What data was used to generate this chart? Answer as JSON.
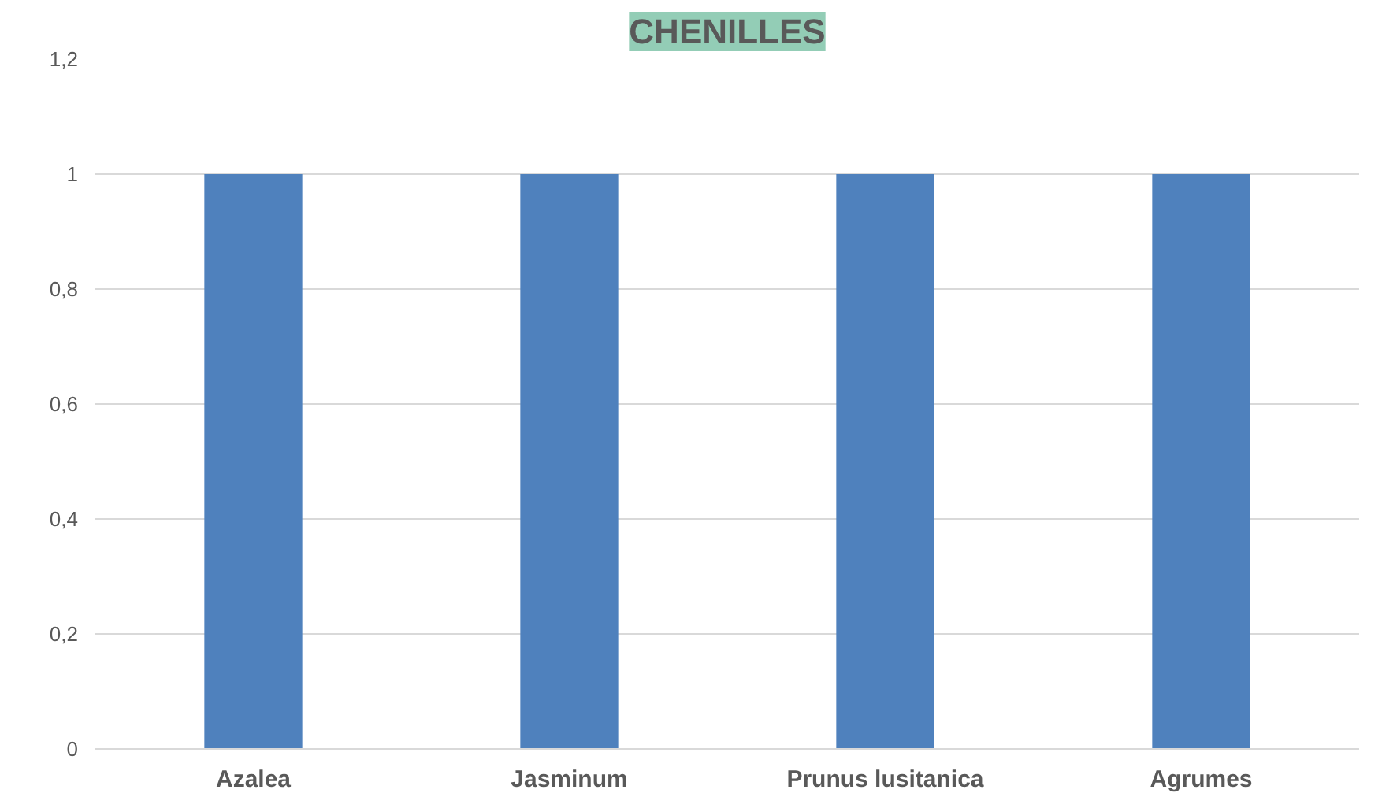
{
  "chart_data": {
    "type": "bar",
    "title": "CHENILLES",
    "categories": [
      "Azalea",
      "Jasminum",
      "Prunus lusitanica",
      "Agrumes"
    ],
    "values": [
      1,
      1,
      1,
      1
    ],
    "color": "#4f81bd",
    "ylim": [
      0,
      1.2
    ],
    "yticks": [
      0,
      {
        "value": 0.2,
        "label": "0,2"
      },
      {
        "value": 0.4,
        "label": "0,4"
      },
      {
        "value": 0.6,
        "label": "0,6"
      },
      {
        "value": 0.8,
        "label": "0,8"
      },
      1,
      {
        "value": 1.2,
        "label": "1,2"
      }
    ],
    "grid": "y"
  }
}
